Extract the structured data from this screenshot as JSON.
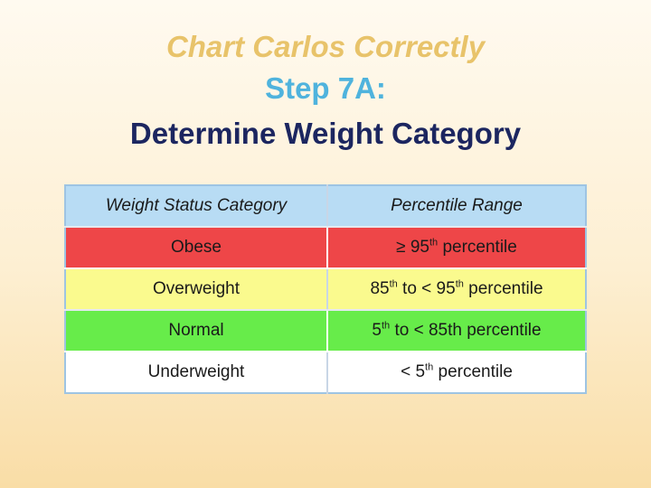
{
  "slide": {
    "line1": "Chart Carlos Correctly",
    "line2": "Step 7A:",
    "line3": "Determine Weight Category"
  },
  "table": {
    "headers": [
      "Weight Status Category",
      "Percentile Range"
    ],
    "rows": [
      {
        "category": "Obese",
        "range": {
          "a": "≥ 95",
          "a_sup": "th",
          "b": " percentile",
          "b_sup": "",
          "c": "",
          "c_sup": "",
          "d": ""
        }
      },
      {
        "category": "Overweight",
        "range": {
          "a": "85",
          "a_sup": "th",
          "b": " to < 95",
          "b_sup": "th",
          "c": " percentile",
          "c_sup": "",
          "d": ""
        }
      },
      {
        "category": "Normal",
        "range": {
          "a": "5",
          "a_sup": "th",
          "b": " to <  85th percentile",
          "b_sup": "",
          "c": "",
          "c_sup": "",
          "d": ""
        }
      },
      {
        "category": "Underweight",
        "range": {
          "a": "< 5",
          "a_sup": "th",
          "b": " percentile",
          "b_sup": "",
          "c": "",
          "c_sup": "",
          "d": ""
        }
      }
    ]
  },
  "colors": {
    "header": "#b8dcf4",
    "obese": "#ee4648",
    "overweight": "#fafa8e",
    "normal": "#67ec4a",
    "underweight": "#ffffff"
  }
}
